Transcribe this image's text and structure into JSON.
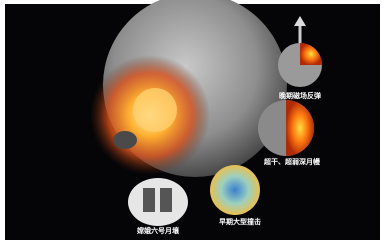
{
  "labels": [
    "晚期磁场反弹",
    "超干、超弱深月幔",
    "嫦娥六号月壤",
    "早期大型撞击"
  ]
}
